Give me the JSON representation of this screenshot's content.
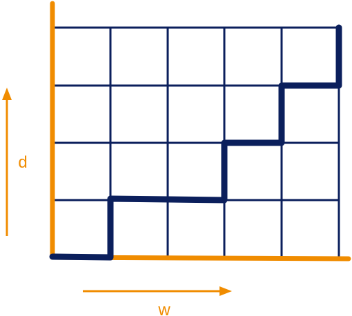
{
  "labels": {
    "vertical": "d",
    "horizontal": "w"
  }
}
